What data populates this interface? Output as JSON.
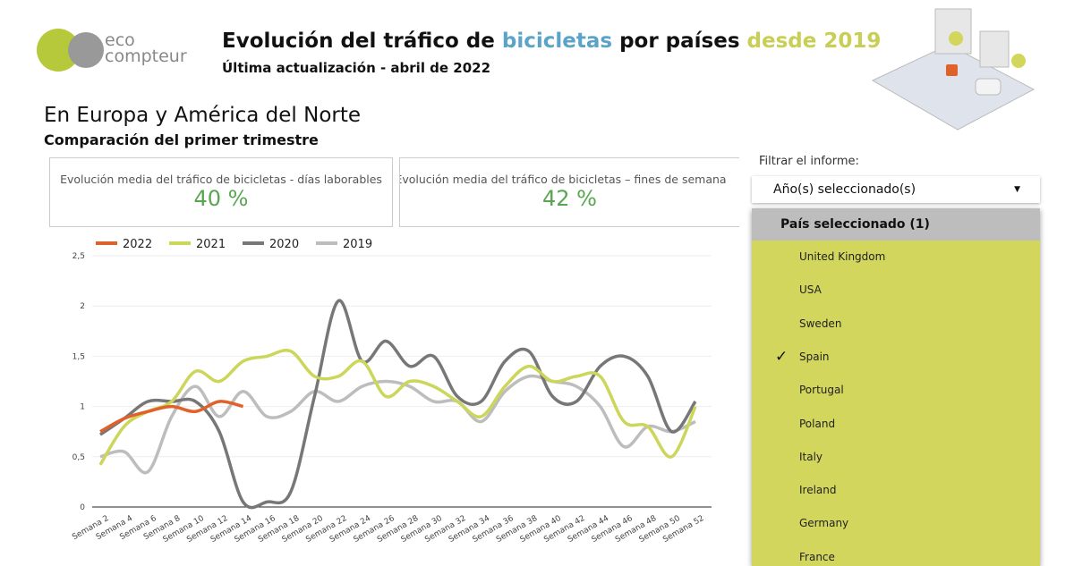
{
  "header": {
    "logo": [
      "eco",
      "compteur"
    ],
    "title": [
      "Evolución del tráfico de",
      "bicicletas",
      "por países",
      "desde 2019"
    ],
    "subtitle": "Última actualización - abril de 2022"
  },
  "section": {
    "title": "En Europa y América del Norte",
    "subtitle": "Comparación del primer trimestre"
  },
  "kpis": [
    {
      "label": "Evolución media del tráfico de bicicletas - días laborables",
      "value": "40 %"
    },
    {
      "label": "Evolución media del tráfico de bicicletas – fines de semana",
      "value": "42 %"
    }
  ],
  "filter": {
    "label": "Filtrar el informe:",
    "dropdown": "Año(s) seleccionado(s)",
    "list_header": "País seleccionado (1)",
    "countries": [
      {
        "name": "United Kingdom"
      },
      {
        "name": "USA"
      },
      {
        "name": "Sweden"
      },
      {
        "name": "Spain",
        "checked": true
      },
      {
        "name": "Portugal"
      },
      {
        "name": "Poland"
      },
      {
        "name": "Italy"
      },
      {
        "name": "Ireland"
      },
      {
        "name": "Germany"
      },
      {
        "name": "France"
      }
    ]
  },
  "chart_data": {
    "type": "line",
    "categories": [
      "Semana 2",
      "Semana 4",
      "Semana 6",
      "Semana 8",
      "Semana 10",
      "Semana 12",
      "Semana 14",
      "Semana 16",
      "Semana 18",
      "Semana 20",
      "Semana 22",
      "Semana 24",
      "Semana 26",
      "Semana 28",
      "Semana 30",
      "Semana 32",
      "Semana 34",
      "Semana 36",
      "Semana 38",
      "Semana 40",
      "Semana 42",
      "Semana 44",
      "Semana 46",
      "Semana 48",
      "Semana 50",
      "Semana 52"
    ],
    "series": [
      {
        "name": "2022",
        "color": "#e0622a",
        "values": [
          0.75,
          0.88,
          0.95,
          1.0,
          0.95,
          1.05,
          1.0,
          null,
          null,
          null,
          null,
          null,
          null,
          null,
          null,
          null,
          null,
          null,
          null,
          null,
          null,
          null,
          null,
          null,
          null,
          null
        ]
      },
      {
        "name": "2021",
        "color": "#ccd65a",
        "values": [
          0.42,
          0.8,
          0.95,
          1.05,
          1.35,
          1.25,
          1.45,
          1.5,
          1.55,
          1.3,
          1.3,
          1.45,
          1.1,
          1.25,
          1.2,
          1.05,
          0.9,
          1.2,
          1.4,
          1.25,
          1.3,
          1.3,
          0.85,
          0.8,
          0.5,
          1.0
        ]
      },
      {
        "name": "2020",
        "color": "#777777",
        "values": [
          0.72,
          0.88,
          1.05,
          1.05,
          1.05,
          0.75,
          0.05,
          0.05,
          0.15,
          1.1,
          2.05,
          1.45,
          1.65,
          1.4,
          1.5,
          1.1,
          1.05,
          1.45,
          1.55,
          1.1,
          1.05,
          1.4,
          1.5,
          1.3,
          0.75,
          1.05
        ]
      },
      {
        "name": "2019",
        "color": "#bdbdbd",
        "values": [
          0.5,
          0.55,
          0.35,
          0.9,
          1.2,
          0.9,
          1.15,
          0.9,
          0.95,
          1.15,
          1.05,
          1.2,
          1.25,
          1.2,
          1.05,
          1.05,
          0.85,
          1.15,
          1.3,
          1.25,
          1.2,
          1.0,
          0.6,
          0.8,
          0.75,
          0.85
        ]
      }
    ],
    "ylim": [
      0,
      2.5
    ],
    "yticks": [
      0,
      {
        "value": 0.5,
        "label": "0,5"
      },
      1,
      {
        "value": 1.5,
        "label": "1,5"
      },
      2,
      {
        "value": 2.5,
        "label": "2,5"
      }
    ],
    "grid": true
  }
}
